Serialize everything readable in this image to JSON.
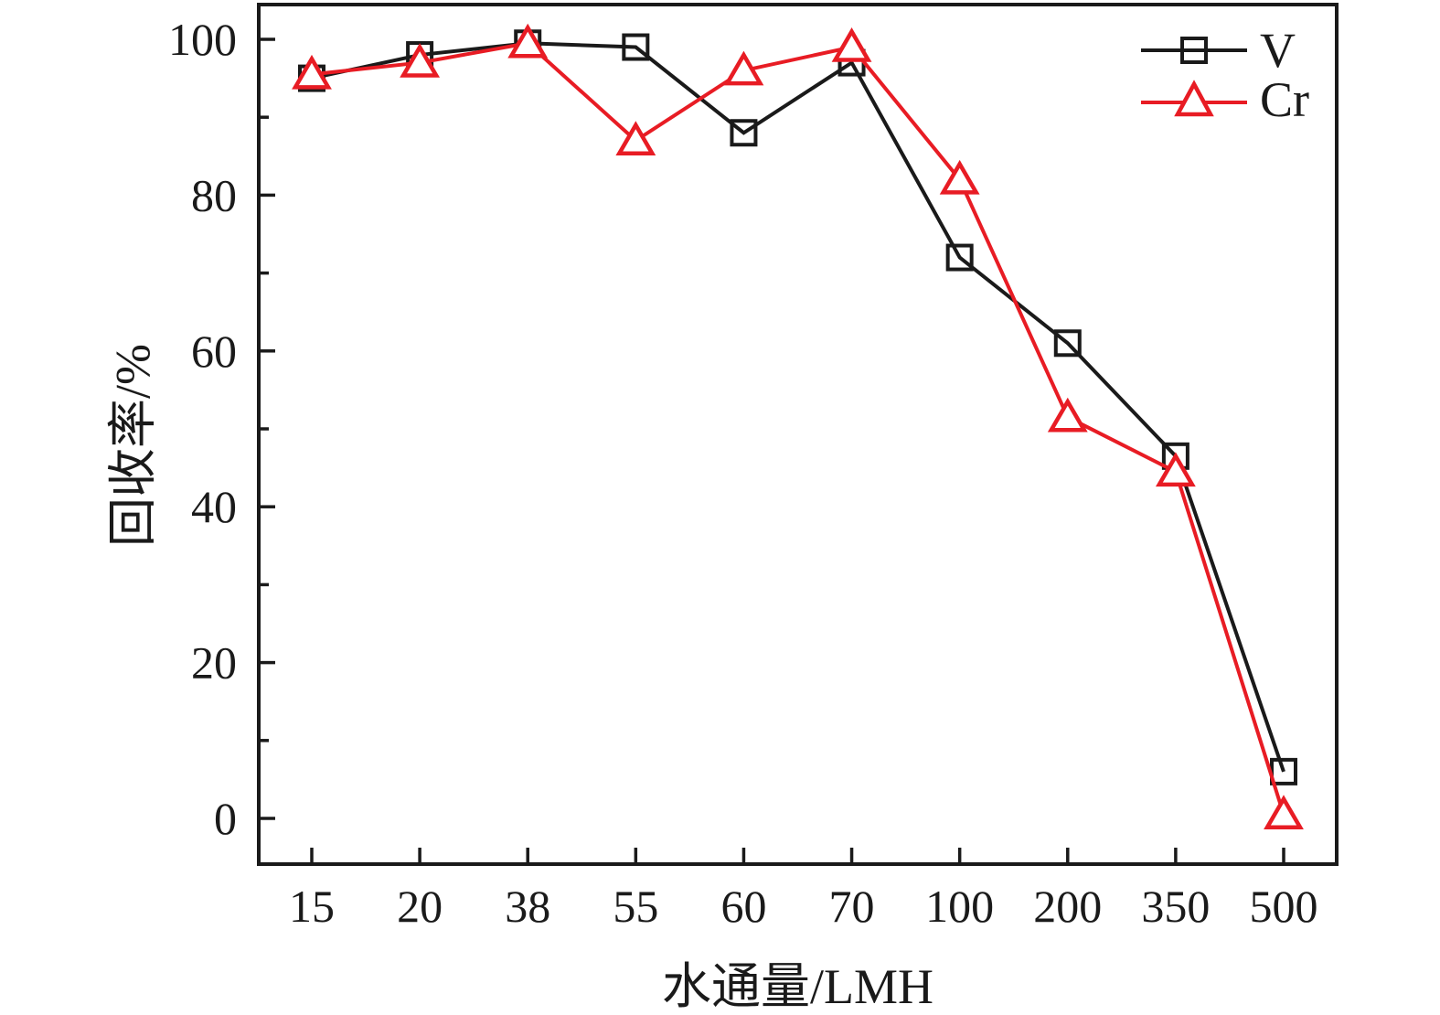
{
  "figure": {
    "background_color": "#ffffff",
    "axis_color": "#1a1a1a"
  },
  "legend": {
    "position": "top-right-inside",
    "items": [
      "V",
      "Cr"
    ]
  },
  "chart_data": {
    "type": "line",
    "title": "",
    "xlabel": "水通量/LMH",
    "ylabel": "回收率/%",
    "x_scale": "categorical",
    "categories": [
      15,
      20,
      38,
      55,
      60,
      70,
      100,
      200,
      350,
      500
    ],
    "ylim": [
      0,
      100
    ],
    "yticks": [
      0,
      20,
      40,
      60,
      80,
      100
    ],
    "ytick_minor_step": 10,
    "grid": false,
    "frame": "full-box",
    "tick_direction": "in",
    "legend_position": "top-right-inside",
    "axis_color": "#1a1a1a",
    "series": [
      {
        "name": "V",
        "color": "#1a1a1a",
        "marker": "square",
        "marker_fill": "none",
        "values": [
          95,
          98,
          99.5,
          99,
          88,
          97,
          72,
          61,
          46.5,
          6
        ]
      },
      {
        "name": "Cr",
        "color": "#e81c24",
        "marker": "triangle",
        "marker_fill": "#ffffff",
        "values": [
          95.5,
          97,
          99.5,
          87,
          96,
          99,
          82,
          51.5,
          44.5,
          0.5
        ]
      }
    ]
  }
}
